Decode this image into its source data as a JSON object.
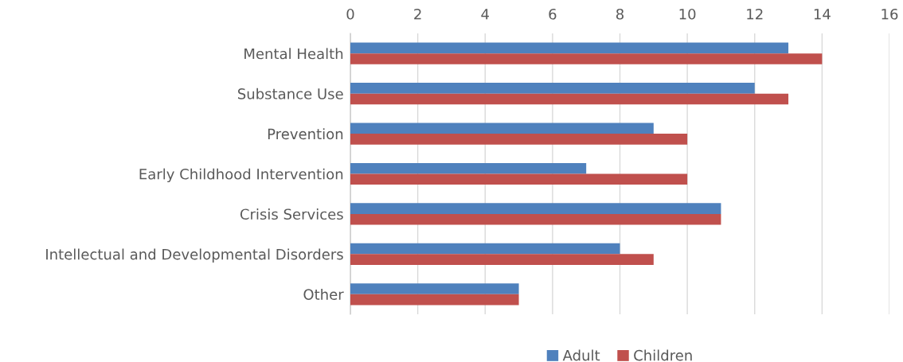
{
  "chart_data": {
    "type": "bar",
    "orientation": "horizontal",
    "categories": [
      "Mental Health",
      "Substance Use",
      "Prevention",
      "Early Childhood Intervention",
      "Crisis Services",
      "Intellectual and Developmental Disorders",
      "Other"
    ],
    "series": [
      {
        "name": "Adult",
        "color": "#4f81bd",
        "values": [
          13,
          12,
          9,
          7,
          11,
          8,
          5
        ]
      },
      {
        "name": "Children",
        "color": "#c0504d",
        "values": [
          14,
          13,
          10,
          10,
          11,
          9,
          5
        ]
      }
    ],
    "xlim": [
      0,
      16
    ],
    "xticks": [
      0,
      2,
      4,
      6,
      8,
      10,
      12,
      14,
      16
    ],
    "grid": "x",
    "legend": "bottom"
  }
}
